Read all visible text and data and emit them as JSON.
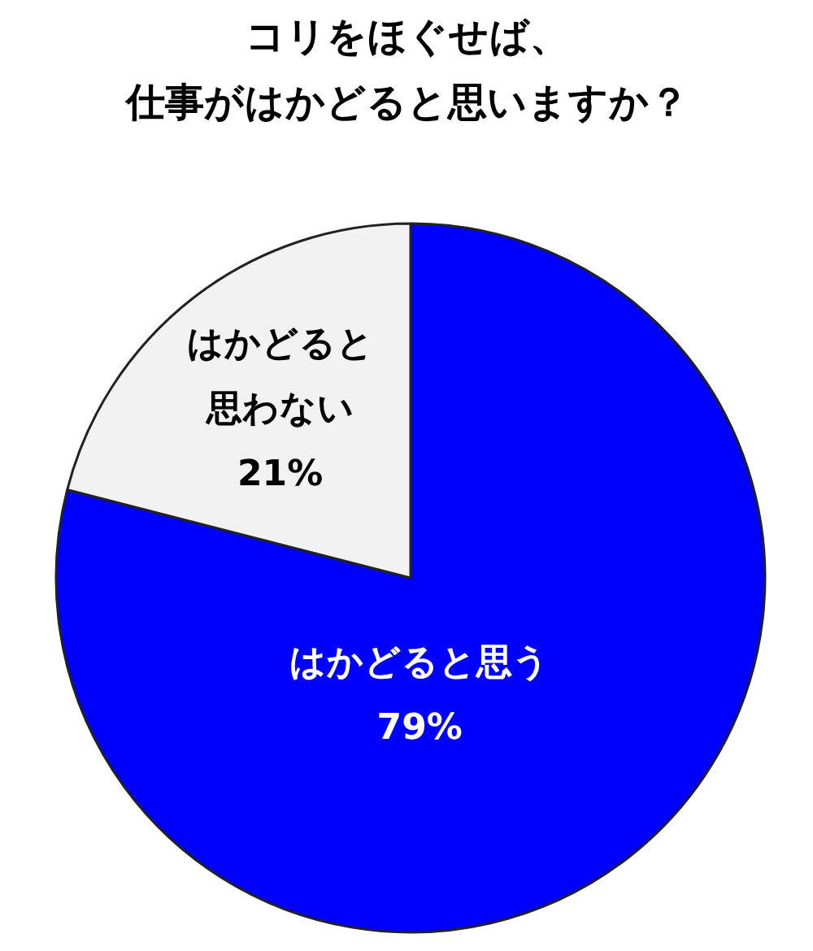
{
  "chart_data": {
    "type": "pie",
    "title": "コリをほぐせば、仕事がはかどると思いますか？",
    "categories": [
      "はかどると思う",
      "はかどると思わない"
    ],
    "values": [
      79,
      21
    ],
    "colors": [
      "#0000ff",
      "#f2f2f2"
    ],
    "value_labels": [
      "79%",
      "21%"
    ]
  }
}
